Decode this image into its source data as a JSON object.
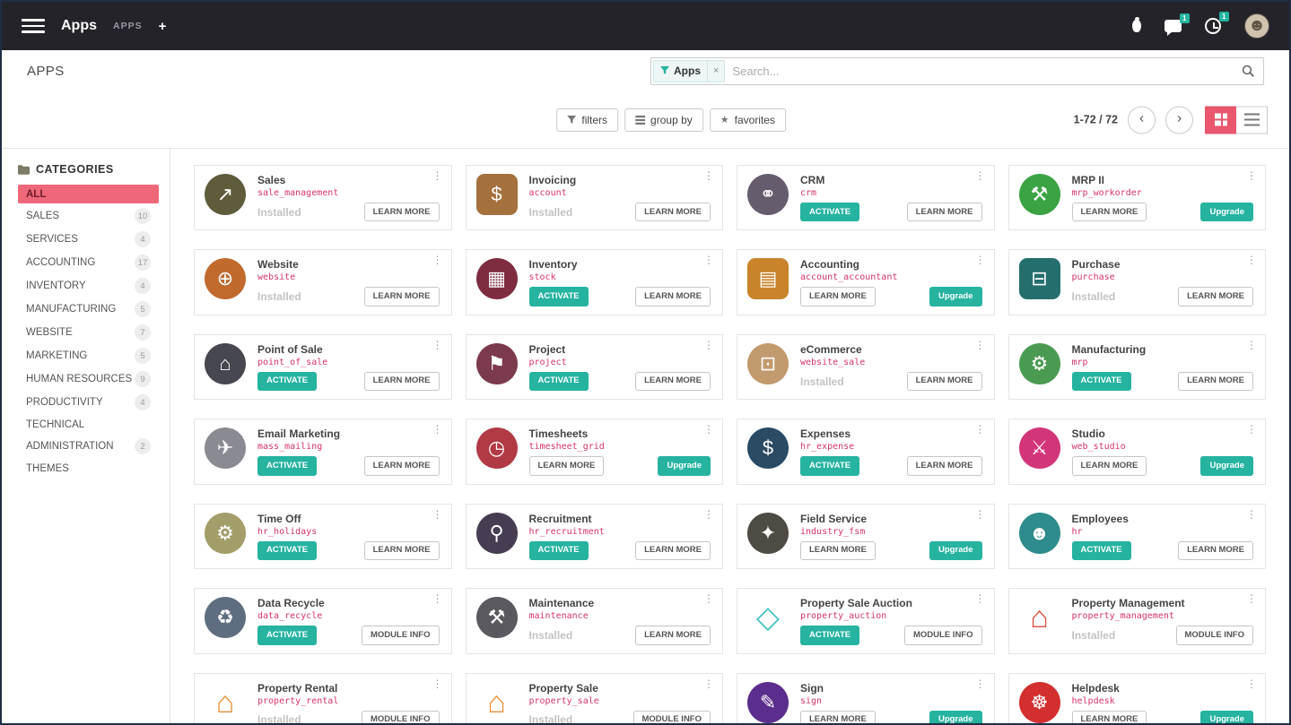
{
  "colors": {
    "accent_pink": "#e9566d",
    "teal": "#26b3a0",
    "module_pink": "#d6336c",
    "selected_category_bg": "#ef6879"
  },
  "icons": {
    "kebab": "⋮",
    "pager_prev": "‹",
    "pager_next": "›",
    "favorites_star": "★",
    "avatar_glyph": "☻"
  },
  "navbar": {
    "app_menu_label": "Apps",
    "submenu_label": "APPS",
    "plus_label": "+",
    "chat_badge": "1",
    "activity_badge": "1"
  },
  "header": {
    "page_title": "APPS",
    "search": {
      "facet_label": "Apps",
      "facet_remove": "×",
      "placeholder": "Search..."
    }
  },
  "control_panel": {
    "filters_label": "filters",
    "group_by_label": "group by",
    "favorites_label": "favorites",
    "pager_text": "1-72 / 72"
  },
  "sidebar": {
    "title": "CATEGORIES",
    "items": [
      {
        "label": "ALL",
        "count": "",
        "selected": true
      },
      {
        "label": "SALES",
        "count": "10"
      },
      {
        "label": "SERVICES",
        "count": "4"
      },
      {
        "label": "ACCOUNTING",
        "count": "17"
      },
      {
        "label": "INVENTORY",
        "count": "4"
      },
      {
        "label": "MANUFACTURING",
        "count": "5"
      },
      {
        "label": "WEBSITE",
        "count": "7"
      },
      {
        "label": "MARKETING",
        "count": "5"
      },
      {
        "label": "HUMAN RESOURCES",
        "count": "9"
      },
      {
        "label": "PRODUCTIVITY",
        "count": "4"
      },
      {
        "label": "TECHNICAL",
        "count": ""
      },
      {
        "label": "ADMINISTRATION",
        "count": "2"
      },
      {
        "label": "THEMES",
        "count": ""
      }
    ]
  },
  "apps": [
    {
      "name": "Sales",
      "module": "sale_management",
      "icon": {
        "name": "sales-icon",
        "glyph": "↗",
        "bg": "#5f5c3c",
        "fg": "#ffffff",
        "shape": "circle"
      },
      "left": {
        "label": "Installed",
        "kind": "status"
      },
      "right": {
        "label": "LEARN MORE",
        "kind": "outline"
      }
    },
    {
      "name": "Invoicing",
      "module": "account",
      "icon": {
        "name": "invoicing-icon",
        "glyph": "$",
        "bg": "#a4703c",
        "fg": "#ffffff",
        "shape": "square"
      },
      "left": {
        "label": "Installed",
        "kind": "status"
      },
      "right": {
        "label": "LEARN MORE",
        "kind": "outline"
      }
    },
    {
      "name": "CRM",
      "module": "crm",
      "icon": {
        "name": "crm-icon",
        "glyph": "⚭",
        "bg": "#655d6e",
        "fg": "#ffffff",
        "shape": "circle"
      },
      "left": {
        "label": "ACTIVATE",
        "kind": "teal"
      },
      "right": {
        "label": "LEARN MORE",
        "kind": "outline"
      }
    },
    {
      "name": "MRP II",
      "module": "mrp_workorder",
      "icon": {
        "name": "mrp2-icon",
        "glyph": "⚒",
        "bg": "#3ba344",
        "fg": "#ffffff",
        "shape": "circle"
      },
      "left": {
        "label": "LEARN MORE",
        "kind": "outline"
      },
      "right": {
        "label": "Upgrade",
        "kind": "teal"
      }
    },
    {
      "name": "Website",
      "module": "website",
      "icon": {
        "name": "website-icon",
        "glyph": "⊕",
        "bg": "#c06a2e",
        "fg": "#ffffff",
        "shape": "circle"
      },
      "left": {
        "label": "Installed",
        "kind": "status"
      },
      "right": {
        "label": "LEARN MORE",
        "kind": "outline"
      }
    },
    {
      "name": "Inventory",
      "module": "stock",
      "icon": {
        "name": "inventory-icon",
        "glyph": "▦",
        "bg": "#7d2d3f",
        "fg": "#ffffff",
        "shape": "circle"
      },
      "left": {
        "label": "ACTIVATE",
        "kind": "teal"
      },
      "right": {
        "label": "LEARN MORE",
        "kind": "outline"
      }
    },
    {
      "name": "Accounting",
      "module": "account_accountant",
      "icon": {
        "name": "accounting-icon",
        "glyph": "▤",
        "bg": "#c8832b",
        "fg": "#ffffff",
        "shape": "square"
      },
      "left": {
        "label": "LEARN MORE",
        "kind": "outline"
      },
      "right": {
        "label": "Upgrade",
        "kind": "teal"
      }
    },
    {
      "name": "Purchase",
      "module": "purchase",
      "icon": {
        "name": "purchase-icon",
        "glyph": "⊟",
        "bg": "#256e6e",
        "fg": "#ffffff",
        "shape": "square"
      },
      "left": {
        "label": "Installed",
        "kind": "status"
      },
      "right": {
        "label": "LEARN MORE",
        "kind": "outline"
      }
    },
    {
      "name": "Point of Sale",
      "module": "point_of_sale",
      "icon": {
        "name": "point-of-sale-icon",
        "glyph": "⌂",
        "bg": "#47474f",
        "fg": "#ffffff",
        "shape": "circle"
      },
      "left": {
        "label": "ACTIVATE",
        "kind": "teal"
      },
      "right": {
        "label": "LEARN MORE",
        "kind": "outline"
      }
    },
    {
      "name": "Project",
      "module": "project",
      "icon": {
        "name": "project-icon",
        "glyph": "⚑",
        "bg": "#7c3a4d",
        "fg": "#ffffff",
        "shape": "circle"
      },
      "left": {
        "label": "ACTIVATE",
        "kind": "teal"
      },
      "right": {
        "label": "LEARN MORE",
        "kind": "outline"
      }
    },
    {
      "name": "eCommerce",
      "module": "website_sale",
      "icon": {
        "name": "ecommerce-cart-icon",
        "glyph": "⊡",
        "bg": "#c29a6d",
        "fg": "#ffffff",
        "shape": "circle"
      },
      "left": {
        "label": "Installed",
        "kind": "status"
      },
      "right": {
        "label": "LEARN MORE",
        "kind": "outline"
      }
    },
    {
      "name": "Manufacturing",
      "module": "mrp",
      "icon": {
        "name": "manufacturing-icon",
        "glyph": "⚙",
        "bg": "#4b9a52",
        "fg": "#ffffff",
        "shape": "circle"
      },
      "left": {
        "label": "ACTIVATE",
        "kind": "teal"
      },
      "right": {
        "label": "LEARN MORE",
        "kind": "outline"
      }
    },
    {
      "name": "Email Marketing",
      "module": "mass_mailing",
      "icon": {
        "name": "email-marketing-icon",
        "glyph": "✈",
        "bg": "#8a8a92",
        "fg": "#ffffff",
        "shape": "circle"
      },
      "left": {
        "label": "ACTIVATE",
        "kind": "teal"
      },
      "right": {
        "label": "LEARN MORE",
        "kind": "outline"
      }
    },
    {
      "name": "Timesheets",
      "module": "timesheet_grid",
      "icon": {
        "name": "timesheets-clock-icon",
        "glyph": "◷",
        "bg": "#b13a45",
        "fg": "#ffffff",
        "shape": "circle"
      },
      "left": {
        "label": "LEARN MORE",
        "kind": "outline"
      },
      "right": {
        "label": "Upgrade",
        "kind": "teal"
      }
    },
    {
      "name": "Expenses",
      "module": "hr_expense",
      "icon": {
        "name": "expenses-icon",
        "glyph": "$",
        "bg": "#2b4a63",
        "fg": "#ffffff",
        "shape": "circle"
      },
      "left": {
        "label": "ACTIVATE",
        "kind": "teal"
      },
      "right": {
        "label": "LEARN MORE",
        "kind": "outline"
      }
    },
    {
      "name": "Studio",
      "module": "web_studio",
      "icon": {
        "name": "studio-tools-icon",
        "glyph": "⚔",
        "bg": "#d2357a",
        "fg": "#ffffff",
        "shape": "circle"
      },
      "left": {
        "label": "LEARN MORE",
        "kind": "outline"
      },
      "right": {
        "label": "Upgrade",
        "kind": "teal"
      }
    },
    {
      "name": "Time Off",
      "module": "hr_holidays",
      "icon": {
        "name": "time-off-icon",
        "glyph": "⚙",
        "bg": "#a39e69",
        "fg": "#ffffff",
        "shape": "circle"
      },
      "left": {
        "label": "ACTIVATE",
        "kind": "teal"
      },
      "right": {
        "label": "LEARN MORE",
        "kind": "outline"
      }
    },
    {
      "name": "Recruitment",
      "module": "hr_recruitment",
      "icon": {
        "name": "recruitment-magnifier-icon",
        "glyph": "⚲",
        "bg": "#463d52",
        "fg": "#ffffff",
        "shape": "circle"
      },
      "left": {
        "label": "ACTIVATE",
        "kind": "teal"
      },
      "right": {
        "label": "LEARN MORE",
        "kind": "outline"
      }
    },
    {
      "name": "Field Service",
      "module": "industry_fsm",
      "icon": {
        "name": "field-service-icon",
        "glyph": "✦",
        "bg": "#4e4a44",
        "fg": "#ffffff",
        "shape": "circle"
      },
      "left": {
        "label": "LEARN MORE",
        "kind": "outline"
      },
      "right": {
        "label": "Upgrade",
        "kind": "teal"
      }
    },
    {
      "name": "Employees",
      "module": "hr",
      "icon": {
        "name": "employees-people-icon",
        "glyph": "☻",
        "bg": "#2e8c8c",
        "fg": "#ffffff",
        "shape": "circle"
      },
      "left": {
        "label": "ACTIVATE",
        "kind": "teal"
      },
      "right": {
        "label": "LEARN MORE",
        "kind": "outline"
      }
    },
    {
      "name": "Data Recycle",
      "module": "data_recycle",
      "icon": {
        "name": "data-recycle-icon",
        "glyph": "♻",
        "bg": "#5e6e80",
        "fg": "#ffffff",
        "shape": "circle"
      },
      "left": {
        "label": "ACTIVATE",
        "kind": "teal"
      },
      "right": {
        "label": "MODULE INFO",
        "kind": "outline"
      }
    },
    {
      "name": "Maintenance",
      "module": "maintenance",
      "icon": {
        "name": "maintenance-hammer-icon",
        "glyph": "⚒",
        "bg": "#59595f",
        "fg": "#ffffff",
        "shape": "circle"
      },
      "left": {
        "label": "Installed",
        "kind": "status"
      },
      "right": {
        "label": "LEARN MORE",
        "kind": "outline"
      }
    },
    {
      "name": "Property Sale Auction",
      "module": "property_auction",
      "icon": {
        "name": "property-auction-cube-icon",
        "glyph": "◇",
        "bg": "transparent",
        "fg": "#49c3c3",
        "shape": "none"
      },
      "left": {
        "label": "ACTIVATE",
        "kind": "teal"
      },
      "right": {
        "label": "MODULE INFO",
        "kind": "outline"
      }
    },
    {
      "name": "Property Management",
      "module": "property_management",
      "icon": {
        "name": "property-management-house-icon",
        "glyph": "⌂",
        "bg": "transparent",
        "fg": "#d8533a",
        "shape": "none"
      },
      "left": {
        "label": "Installed",
        "kind": "status"
      },
      "right": {
        "label": "MODULE INFO",
        "kind": "outline"
      }
    },
    {
      "name": "Property Rental",
      "module": "property_rental",
      "icon": {
        "name": "property-rental-house-icon",
        "glyph": "⌂",
        "bg": "transparent",
        "fg": "#e8913a",
        "shape": "none"
      },
      "left": {
        "label": "Installed",
        "kind": "status"
      },
      "right": {
        "label": "MODULE INFO",
        "kind": "outline"
      }
    },
    {
      "name": "Property Sale",
      "module": "property_sale",
      "icon": {
        "name": "property-sale-house-icon",
        "glyph": "⌂",
        "bg": "transparent",
        "fg": "#e8913a",
        "shape": "none"
      },
      "left": {
        "label": "Installed",
        "kind": "status"
      },
      "right": {
        "label": "MODULE INFO",
        "kind": "outline"
      }
    },
    {
      "name": "Sign",
      "module": "sign",
      "icon": {
        "name": "sign-pen-icon",
        "glyph": "✎",
        "bg": "#5b2d8c",
        "fg": "#ffffff",
        "shape": "circle"
      },
      "left": {
        "label": "LEARN MORE",
        "kind": "outline"
      },
      "right": {
        "label": "Upgrade",
        "kind": "teal"
      }
    },
    {
      "name": "Helpdesk",
      "module": "helpdesk",
      "icon": {
        "name": "helpdesk-lifebuoy-icon",
        "glyph": "☸",
        "bg": "#d32f2f",
        "fg": "#ffffff",
        "shape": "circle"
      },
      "left": {
        "label": "LEARN MORE",
        "kind": "outline"
      },
      "right": {
        "label": "Upgrade",
        "kind": "teal"
      }
    }
  ]
}
